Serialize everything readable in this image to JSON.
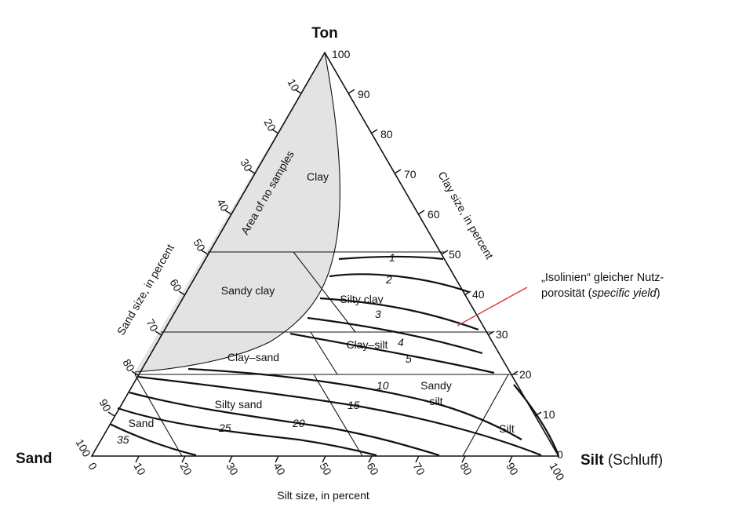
{
  "vertices": {
    "top": "Ton",
    "left": "Sand",
    "right_main": "Silt",
    "right_sub": "(Schluff)"
  },
  "axes": {
    "sand_title": "Sand size, in percent",
    "clay_title": "Clay size, in percent",
    "silt_title": "Silt size, in percent",
    "sand_ticks": [
      "10",
      "20",
      "30",
      "40",
      "50",
      "60",
      "70",
      "80",
      "90",
      "100"
    ],
    "clay_ticks": [
      "100",
      "90",
      "80",
      "70",
      "60",
      "50",
      "40",
      "30",
      "20",
      "10",
      "0"
    ],
    "silt_ticks": [
      "0",
      "10",
      "20",
      "30",
      "40",
      "50",
      "60",
      "70",
      "80",
      "90",
      "100"
    ]
  },
  "regions": {
    "area_no_samples": "Area of no samples",
    "clay": "Clay",
    "sandy_clay": "Sandy clay",
    "silty_clay": "Silty clay",
    "clay_silt": "Clay–silt",
    "clay_sand": "Clay–sand",
    "sandy_silt_1": "Sandy",
    "sandy_silt_2": "silt",
    "silty_sand": "Silty sand",
    "sand": "Sand",
    "silt": "Silt"
  },
  "isolines": [
    "1",
    "2",
    "3",
    "4",
    "5",
    "10",
    "15",
    "20",
    "25",
    "35"
  ],
  "annotation": {
    "line1": "„Isolinien“ gleicher Nutz-",
    "line2_plain": "porosität (",
    "line2_italic": "specific yield",
    "line2_end": ")"
  },
  "colors": {
    "shaded": "#e3e3e3",
    "ink": "#111111",
    "pointer": "#e0383e"
  }
}
